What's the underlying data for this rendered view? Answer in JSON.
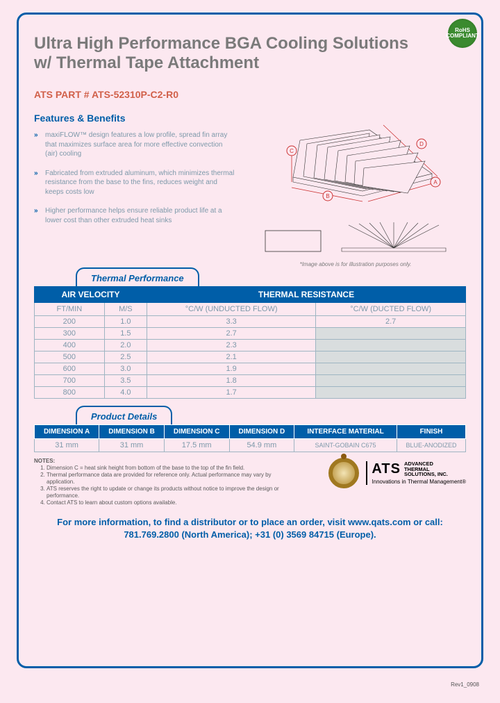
{
  "title": "Ultra High Performance BGA Cooling Solutions w/ Thermal Tape Attachment",
  "rohs_label": "RoHS COMPLIANT",
  "part_number": "ATS PART # ATS-52310P-C2-R0",
  "features_title": "Features & Benefits",
  "features": [
    "maxiFLOW™ design features a low profile, spread fin array that maximizes surface area for more effective convection (air) cooling",
    "Fabricated from extruded aluminum, which minimizes thermal resistance from the base to the fins, reduces weight and keeps costs low",
    "Higher performance helps ensure reliable product life at a lower cost than other extruded heat sinks"
  ],
  "dimension_labels": {
    "a": "A",
    "b": "B",
    "c": "C",
    "d": "D"
  },
  "illustration_note": "*Image above is for illustration purposes only.",
  "thermal_tab": "Thermal Performance",
  "thermal_group_headers": [
    "AIR VELOCITY",
    "THERMAL RESISTANCE"
  ],
  "thermal_sub_headers": [
    "FT/MIN",
    "M/S",
    "°C/W (UNDUCTED FLOW)",
    "°C/W (DUCTED FLOW)"
  ],
  "thermal_rows": [
    {
      "ft": "200",
      "ms": "1.0",
      "und": "3.3",
      "duc": "2.7",
      "shaded": false
    },
    {
      "ft": "300",
      "ms": "1.5",
      "und": "2.7",
      "duc": "",
      "shaded": true
    },
    {
      "ft": "400",
      "ms": "2.0",
      "und": "2.3",
      "duc": "",
      "shaded": true
    },
    {
      "ft": "500",
      "ms": "2.5",
      "und": "2.1",
      "duc": "",
      "shaded": true
    },
    {
      "ft": "600",
      "ms": "3.0",
      "und": "1.9",
      "duc": "",
      "shaded": true
    },
    {
      "ft": "700",
      "ms": "3.5",
      "und": "1.8",
      "duc": "",
      "shaded": true
    },
    {
      "ft": "800",
      "ms": "4.0",
      "und": "1.7",
      "duc": "",
      "shaded": true
    }
  ],
  "product_tab": "Product Details",
  "product_headers": [
    "DIMENSION A",
    "DIMENSION B",
    "DIMENSION C",
    "DIMENSION D",
    "INTERFACE MATERIAL",
    "FINISH"
  ],
  "product_row": [
    "31 mm",
    "31 mm",
    "17.5 mm",
    "54.9 mm",
    "SAINT-GOBAIN C675",
    "BLUE-ANODIZED"
  ],
  "notes_title": "NOTES:",
  "notes": [
    "Dimension C = heat sink height from bottom of the base to the top of the fin field.",
    "Thermal performance data are provided for reference only. Actual performance may vary by application.",
    "ATS reserves the right to update or change its products without notice to improve the design or performance.",
    "Contact ATS to learn about custom options available."
  ],
  "logo": {
    "ats": "ATS",
    "line1": "ADVANCED",
    "line2": "THERMAL",
    "line3": "SOLUTIONS, INC.",
    "tagline": "Innovations in Thermal Management®"
  },
  "cta": "For more information, to find a distributor or to place an order, visit www.qats.com or call: 781.769.2800 (North America); +31 (0) 3569 84715 (Europe).",
  "revision": "Rev1_0908",
  "colors": {
    "page_bg": "#fce8f0",
    "border": "#005ea8",
    "title_gray": "#7a7a7a",
    "part_orange": "#d1604a",
    "body_blue_gray": "#7d99aa",
    "shaded_cell": "#d9ddde"
  }
}
